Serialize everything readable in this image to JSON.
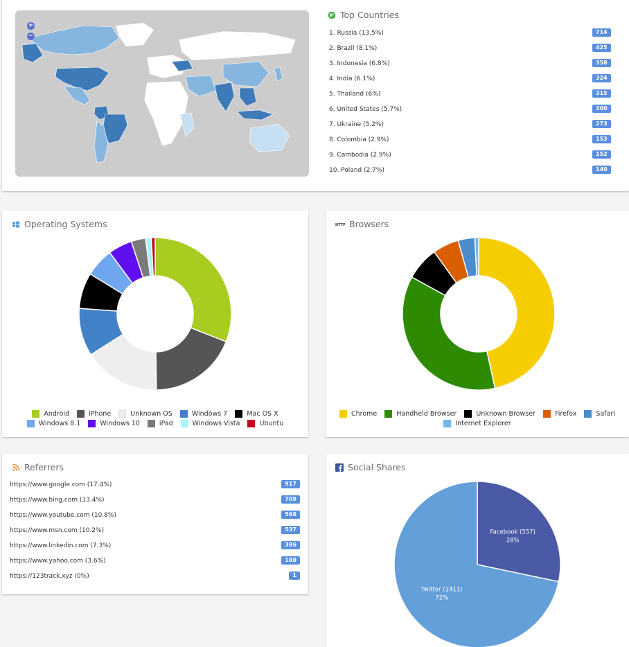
{
  "top_countries": {
    "title": "Top Countries",
    "icon": "globe-icon",
    "items": [
      {
        "label": "1. Russia (13.5%)",
        "count": "714"
      },
      {
        "label": "2. Brazil (8.1%)",
        "count": "425"
      },
      {
        "label": "3. Indonesia (6.8%)",
        "count": "358"
      },
      {
        "label": "4. India (6.1%)",
        "count": "324"
      },
      {
        "label": "5. Thailand (6%)",
        "count": "315"
      },
      {
        "label": "6. United States (5.7%)",
        "count": "300"
      },
      {
        "label": "7. Ukraine (5.2%)",
        "count": "273"
      },
      {
        "label": "8. Colombia (2.9%)",
        "count": "153"
      },
      {
        "label": "9. Cambodia (2.9%)",
        "count": "152"
      },
      {
        "label": "10. Poland (2.7%)",
        "count": "140"
      }
    ],
    "zoom_in": "+",
    "zoom_out": "−"
  },
  "operating_systems": {
    "title": "Operating Systems",
    "icon": "windows-icon",
    "items": [
      {
        "name": "Android",
        "color": "#a8cc1f",
        "value": 30.5
      },
      {
        "name": "iPhone",
        "color": "#555555",
        "value": 18.5
      },
      {
        "name": "Unknown OS",
        "color": "#eeeeee",
        "value": 16
      },
      {
        "name": "Windows 7",
        "color": "#4282c8",
        "value": 10
      },
      {
        "name": "Mac OS X",
        "color": "#000000",
        "value": 7.5
      },
      {
        "name": "Windows 8.1",
        "color": "#6fa6f2",
        "value": 6
      },
      {
        "name": "Windows 10",
        "color": "#6010f0",
        "value": 5
      },
      {
        "name": "iPad",
        "color": "#7a7a7a",
        "value": 3
      },
      {
        "name": "Windows Vista",
        "color": "#a6f6fb",
        "value": 1.2
      },
      {
        "name": "Ubuntu",
        "color": "#c8001c",
        "value": 0.8
      }
    ]
  },
  "browsers": {
    "title": "Browsers",
    "icon": "http-icon",
    "items": [
      {
        "name": "Chrome",
        "color": "#f5cd00",
        "value": 46
      },
      {
        "name": "Handheld Browser",
        "color": "#2e8a00",
        "value": 36
      },
      {
        "name": "Unknown Browser",
        "color": "#000000",
        "value": 7
      },
      {
        "name": "Firefox",
        "color": "#d95f02",
        "value": 5.5
      },
      {
        "name": "Safari",
        "color": "#4b8ccc",
        "value": 3.5
      },
      {
        "name": "Internet Explorer",
        "color": "#6bb9f0",
        "value": 0.8
      }
    ]
  },
  "referrers": {
    "title": "Referrers",
    "icon": "rss-icon",
    "items": [
      {
        "label": "https://www.google.com (17.4%)",
        "count": "917"
      },
      {
        "label": "https://www.bing.com (13.4%)",
        "count": "709"
      },
      {
        "label": "https://www.youtube.com (10.8%)",
        "count": "568"
      },
      {
        "label": "https://www.msn.com (10.2%)",
        "count": "537"
      },
      {
        "label": "https://www.linkedin.com (7.3%)",
        "count": "386"
      },
      {
        "label": "https://www.yahoo.com (3.6%)",
        "count": "188"
      },
      {
        "label": "https://123track.xyz (0%)",
        "count": "1"
      }
    ]
  },
  "social_shares": {
    "title": "Social Shares",
    "icon": "facebook-icon",
    "slices": [
      {
        "name": "Facebook (557)",
        "percent": "28%",
        "value": 557,
        "color": "#4b5aa6"
      },
      {
        "name": "Twitter (1411)",
        "percent": "72%",
        "value": 1411,
        "color": "#639fd9"
      }
    ]
  },
  "colors": {
    "badge": "#5a8fe0",
    "map_ocean": "#cccccc",
    "map_dark": "#3e7ab8",
    "map_medium": "#86b6de",
    "map_light": "#c6dff2",
    "map_none": "#ffffff"
  }
}
